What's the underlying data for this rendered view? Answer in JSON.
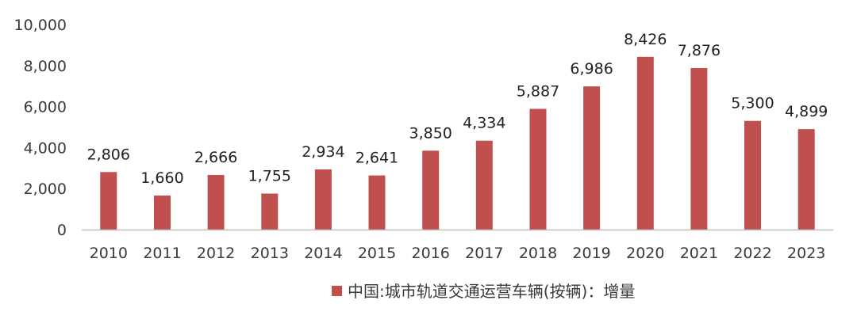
{
  "chart_data": {
    "type": "bar",
    "title": "",
    "xlabel": "",
    "ylabel": "",
    "categories": [
      "2010",
      "2011",
      "2012",
      "2013",
      "2014",
      "2015",
      "2016",
      "2017",
      "2018",
      "2019",
      "2020",
      "2021",
      "2022",
      "2023"
    ],
    "series": [
      {
        "name": "中国:城市轨道交通运营车辆(按辆)：增量",
        "values": [
          2806,
          1660,
          2666,
          1755,
          2934,
          2641,
          3850,
          4334,
          5887,
          6986,
          8426,
          7876,
          5300,
          4899
        ],
        "value_labels": [
          "2,806",
          "1,660",
          "2,666",
          "1,755",
          "2,934",
          "2,641",
          "3,850",
          "4,334",
          "5,887",
          "6,986",
          "8,426",
          "7,876",
          "5,300",
          "4,899"
        ]
      }
    ],
    "ylim": [
      0,
      10000
    ],
    "yticks": [
      0,
      2000,
      4000,
      6000,
      8000,
      10000
    ],
    "ytick_labels": [
      "0",
      "2,000",
      "4,000",
      "6,000",
      "8,000",
      "10,000"
    ],
    "grid": false,
    "legend_position": "bottom-center",
    "colors": {
      "bar": "#c0504d",
      "axis": "#bfbfbf"
    }
  }
}
